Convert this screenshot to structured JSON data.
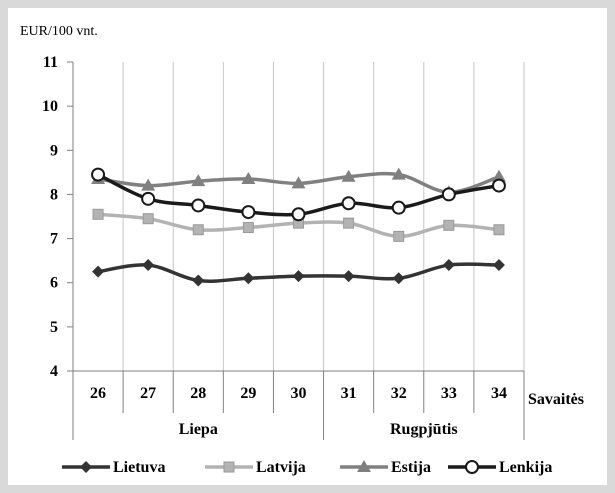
{
  "chart_data": {
    "type": "line",
    "ylabel": "EUR/100 vnt.",
    "xlabel": "Savaitės",
    "ylim": [
      4,
      11
    ],
    "yticks": [
      4,
      5,
      6,
      7,
      8,
      9,
      10,
      11
    ],
    "x": [
      26,
      27,
      28,
      29,
      30,
      31,
      32,
      33,
      34
    ],
    "x_groups": [
      {
        "label": "Liepa",
        "weeks": [
          26,
          30
        ]
      },
      {
        "label": "Rugpjūtis",
        "weeks": [
          31,
          34
        ]
      }
    ],
    "series": [
      {
        "name": "Lietuva",
        "color": "#333333",
        "marker": "diamond",
        "values": [
          6.25,
          6.4,
          6.05,
          6.1,
          6.15,
          6.15,
          6.1,
          6.4,
          6.4
        ]
      },
      {
        "name": "Latvija",
        "color": "#b3b3b3",
        "marker": "square",
        "values": [
          7.55,
          7.45,
          7.2,
          7.25,
          7.35,
          7.35,
          7.05,
          7.3,
          7.2
        ]
      },
      {
        "name": "Estija",
        "color": "#808080",
        "marker": "triangle",
        "values": [
          8.35,
          8.2,
          8.3,
          8.35,
          8.25,
          8.4,
          8.45,
          8.05,
          8.4
        ]
      },
      {
        "name": "Lenkija",
        "color": "#1a1a1a",
        "marker": "circle",
        "marker_fill": "#ffffff",
        "values": [
          8.45,
          7.9,
          7.75,
          7.6,
          7.55,
          7.8,
          7.7,
          8.0,
          8.2
        ]
      }
    ],
    "line_style": "smooth",
    "grid": {
      "vertical": true,
      "horizontal": false
    },
    "legend": "bottom"
  }
}
